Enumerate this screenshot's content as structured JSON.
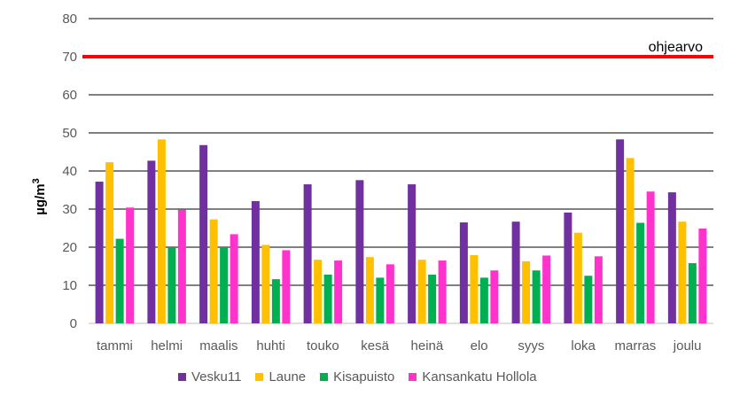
{
  "chart_data": {
    "type": "bar",
    "categories": [
      "tammi",
      "helmi",
      "maalis",
      "huhti",
      "touko",
      "kesä",
      "heinä",
      "elo",
      "syys",
      "loka",
      "marras",
      "joulu"
    ],
    "series": [
      {
        "name": "Vesku11",
        "color": "#7030a0",
        "values": [
          37.2,
          42.7,
          46.8,
          32.1,
          36.5,
          37.6,
          36.5,
          26.5,
          26.7,
          29.1,
          48.3,
          34.4
        ]
      },
      {
        "name": "Laune",
        "color": "#ffc000",
        "values": [
          42.3,
          48.3,
          27.3,
          20.6,
          16.7,
          17.4,
          16.7,
          17.9,
          16.3,
          23.8,
          43.4,
          26.7
        ]
      },
      {
        "name": "Kisapuisto",
        "color": "#00b050",
        "values": [
          22.2,
          20.0,
          20.0,
          11.6,
          12.8,
          12.0,
          12.8,
          12.0,
          13.9,
          12.5,
          26.4,
          15.8
        ]
      },
      {
        "name": "Kansankatu Hollola",
        "color": "#ff33cc",
        "values": [
          30.4,
          29.8,
          23.4,
          19.2,
          16.5,
          15.5,
          16.5,
          13.9,
          17.8,
          17.6,
          34.6,
          24.9
        ]
      }
    ],
    "ylabel_main": "µg/m",
    "ylabel_sup": "3",
    "ylim": [
      0,
      80
    ],
    "yticks": [
      0,
      10,
      20,
      30,
      40,
      50,
      60,
      70,
      80
    ],
    "grid": true,
    "reference_line": {
      "value": 70,
      "label": "ohjearvo",
      "color": "#ff0000"
    },
    "legend_position": "bottom"
  }
}
